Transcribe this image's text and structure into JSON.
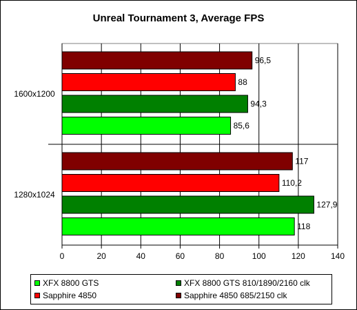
{
  "chart_data": {
    "type": "bar",
    "orientation": "horizontal",
    "title": "Unreal Tournament 3, Average FPS",
    "xlabel": "",
    "ylabel": "",
    "xlim": [
      0,
      140
    ],
    "xticks": [
      0,
      20,
      40,
      60,
      80,
      100,
      120,
      140
    ],
    "grid": true,
    "legend_position": "bottom",
    "categories": [
      "1600x1200",
      "1280x1024"
    ],
    "series": [
      {
        "name": "Sapphire 4850 685/2150 clk",
        "color": "#800000",
        "values": [
          96.5,
          117
        ],
        "labels": [
          "96,5",
          "117"
        ]
      },
      {
        "name": "Sapphire 4850",
        "color": "#ff0000",
        "values": [
          88,
          110.2
        ],
        "labels": [
          "88",
          "110,2"
        ]
      },
      {
        "name": "XFX 8800 GTS 810/1890/2160 clk",
        "color": "#008000",
        "values": [
          94.3,
          127.9
        ],
        "labels": [
          "94,3",
          "127,9"
        ]
      },
      {
        "name": "XFX 8800 GTS",
        "color": "#00ff00",
        "values": [
          85.6,
          118
        ],
        "labels": [
          "85,6",
          "118"
        ]
      }
    ],
    "legend": [
      {
        "name": "XFX 8800 GTS",
        "color": "#00ff00"
      },
      {
        "name": "XFX 8800 GTS 810/1890/2160 clk",
        "color": "#008000"
      },
      {
        "name": "Sapphire 4850",
        "color": "#ff0000"
      },
      {
        "name": "Sapphire 4850 685/2150 clk",
        "color": "#800000"
      }
    ]
  }
}
